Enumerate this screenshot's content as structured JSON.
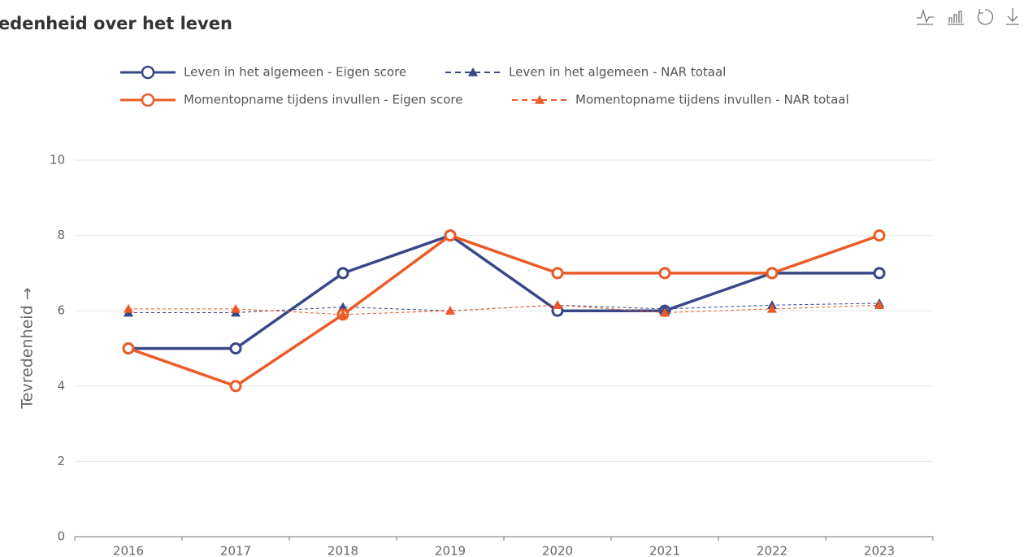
{
  "chart_data": {
    "type": "line",
    "title": "Tevredenheid over het leven",
    "y_label": "Tevredenheid →",
    "categories": [
      "2016",
      "2017",
      "2018",
      "2019",
      "2020",
      "2021",
      "2022",
      "2023"
    ],
    "series": [
      {
        "name": "Leven in het algemeen - Eigen score",
        "color": "#3a4787",
        "dashed": false,
        "marker": "circle",
        "values": [
          5,
          5,
          7,
          8,
          6,
          6,
          7,
          7
        ]
      },
      {
        "name": "Leven in het algemeen - NAR totaal",
        "color": "#3a4787",
        "dashed": true,
        "marker": "triangle",
        "values": [
          5.95,
          5.95,
          6.1,
          6.0,
          6.15,
          6.05,
          6.15,
          6.2
        ]
      },
      {
        "name": "Momentopname tijdens invullen - Eigen score",
        "color": "#ec5b27",
        "dashed": false,
        "marker": "circle",
        "values": [
          5,
          4,
          5.9,
          8,
          7,
          7,
          7,
          8
        ]
      },
      {
        "name": "Momentopname tijdens invullen - NAR totaal",
        "color": "#ec5b27",
        "dashed": true,
        "marker": "triangle",
        "values": [
          6.05,
          6.05,
          5.9,
          6.0,
          6.15,
          5.95,
          6.05,
          6.15
        ]
      }
    ],
    "ylim": [
      0,
      10
    ],
    "yticks": [
      0,
      2,
      4,
      6,
      8,
      10
    ],
    "grid": true
  }
}
